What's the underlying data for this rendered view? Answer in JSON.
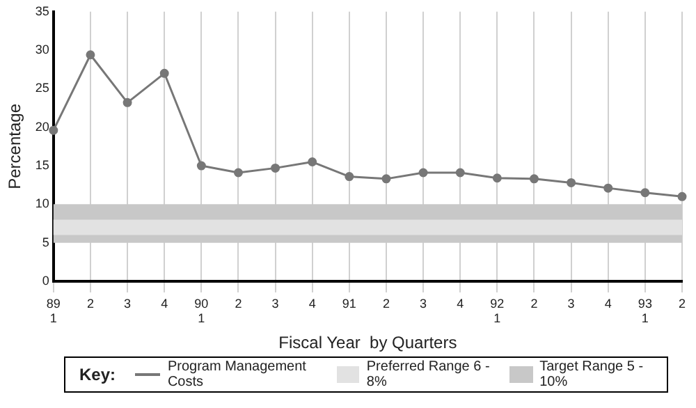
{
  "chart_data": {
    "type": "line",
    "categories": [
      "89\n1",
      "2",
      "3",
      "4",
      "90\n1",
      "2",
      "3",
      "4",
      "91",
      "2",
      "3",
      "4",
      "92\n1",
      "2",
      "3",
      "4",
      "93\n1",
      "2"
    ],
    "series": [
      {
        "name": "Program Management Costs",
        "color": "#777777",
        "values": [
          19.6,
          29.4,
          23.2,
          27.0,
          15.0,
          14.1,
          14.7,
          15.5,
          13.6,
          13.3,
          14.1,
          14.1,
          13.4,
          13.3,
          12.8,
          12.1,
          11.5,
          11.0
        ]
      }
    ],
    "xlabel": "Fiscal Year  by Quarters",
    "ylabel": "Percentage",
    "ylim": [
      0,
      35
    ],
    "yticks": [
      0,
      5,
      10,
      15,
      20,
      25,
      30,
      35
    ],
    "bands": [
      {
        "axis": "y",
        "from": 5,
        "to": 10,
        "label": "Target Range 5 - 10%",
        "color": "#c8c8c8"
      },
      {
        "axis": "y",
        "from": 6,
        "to": 8,
        "label": "Preferred Range 6 - 8%",
        "color": "#e2e2e2"
      }
    ],
    "legend_title": "Key:",
    "legend": "bottom",
    "grid": "x",
    "marker": "circle",
    "line_style": "solid"
  }
}
